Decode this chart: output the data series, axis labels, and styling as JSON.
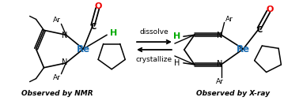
{
  "bg_color": "#ffffff",
  "re_color": "#1a6eb5",
  "h_color": "#00aa00",
  "o_color": "#ee0000",
  "dissolve_text": "dissolve",
  "crystallize_text": "crystallize",
  "nmr_label": "Observed by NMR",
  "xray_label": "Observed by X-ray",
  "figsize": [
    3.78,
    1.28
  ],
  "dpi": 100
}
